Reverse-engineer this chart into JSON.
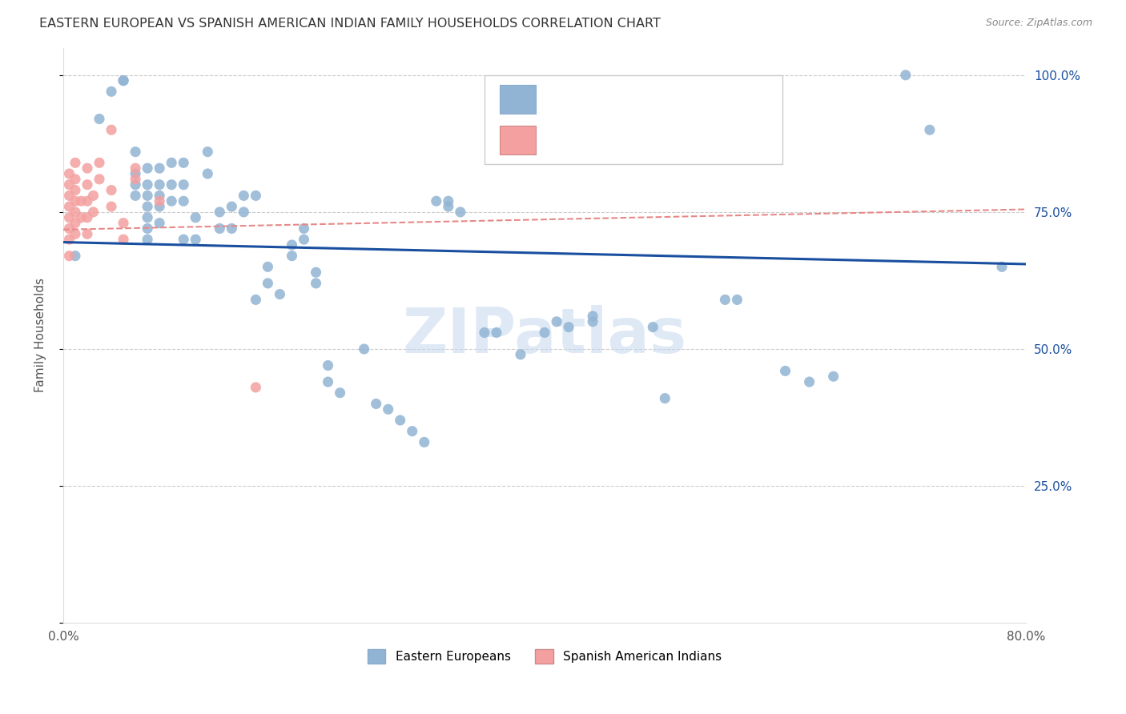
{
  "title": "EASTERN EUROPEAN VS SPANISH AMERICAN INDIAN FAMILY HOUSEHOLDS CORRELATION CHART",
  "source": "Source: ZipAtlas.com",
  "ylabel": "Family Households",
  "xlim": [
    0.0,
    0.8
  ],
  "ylim": [
    0.0,
    1.05
  ],
  "blue_color": "#92b4d4",
  "pink_color": "#f4a0a0",
  "blue_line_color": "#1a4fa0",
  "pink_line_color": "#e88888",
  "watermark": "ZIPatlas",
  "blue_scatter_x": [
    0.01,
    0.03,
    0.04,
    0.05,
    0.05,
    0.06,
    0.06,
    0.06,
    0.06,
    0.07,
    0.07,
    0.07,
    0.07,
    0.07,
    0.07,
    0.07,
    0.08,
    0.08,
    0.08,
    0.08,
    0.08,
    0.09,
    0.09,
    0.09,
    0.1,
    0.1,
    0.1,
    0.1,
    0.11,
    0.11,
    0.12,
    0.12,
    0.13,
    0.13,
    0.14,
    0.14,
    0.15,
    0.15,
    0.16,
    0.16,
    0.17,
    0.17,
    0.18,
    0.19,
    0.19,
    0.2,
    0.2,
    0.21,
    0.21,
    0.22,
    0.22,
    0.23,
    0.25,
    0.26,
    0.27,
    0.28,
    0.29,
    0.3,
    0.31,
    0.32,
    0.32,
    0.33,
    0.35,
    0.36,
    0.38,
    0.4,
    0.41,
    0.42,
    0.44,
    0.44,
    0.49,
    0.5,
    0.55,
    0.56,
    0.6,
    0.62,
    0.64,
    0.7,
    0.72,
    0.78
  ],
  "blue_scatter_y": [
    0.67,
    0.92,
    0.97,
    0.99,
    0.99,
    0.86,
    0.82,
    0.8,
    0.78,
    0.83,
    0.8,
    0.78,
    0.76,
    0.74,
    0.72,
    0.7,
    0.83,
    0.8,
    0.78,
    0.76,
    0.73,
    0.84,
    0.8,
    0.77,
    0.84,
    0.8,
    0.77,
    0.7,
    0.74,
    0.7,
    0.86,
    0.82,
    0.75,
    0.72,
    0.76,
    0.72,
    0.78,
    0.75,
    0.78,
    0.59,
    0.65,
    0.62,
    0.6,
    0.69,
    0.67,
    0.72,
    0.7,
    0.64,
    0.62,
    0.47,
    0.44,
    0.42,
    0.5,
    0.4,
    0.39,
    0.37,
    0.35,
    0.33,
    0.77,
    0.77,
    0.76,
    0.75,
    0.53,
    0.53,
    0.49,
    0.53,
    0.55,
    0.54,
    0.56,
    0.55,
    0.54,
    0.41,
    0.59,
    0.59,
    0.46,
    0.44,
    0.45,
    1.0,
    0.9,
    0.65
  ],
  "pink_scatter_x": [
    0.005,
    0.005,
    0.005,
    0.005,
    0.005,
    0.005,
    0.005,
    0.005,
    0.01,
    0.01,
    0.01,
    0.01,
    0.01,
    0.01,
    0.01,
    0.015,
    0.015,
    0.02,
    0.02,
    0.02,
    0.02,
    0.02,
    0.025,
    0.025,
    0.03,
    0.03,
    0.04,
    0.04,
    0.04,
    0.05,
    0.05,
    0.06,
    0.06,
    0.08,
    0.16
  ],
  "pink_scatter_y": [
    0.82,
    0.8,
    0.78,
    0.76,
    0.74,
    0.72,
    0.7,
    0.67,
    0.84,
    0.81,
    0.79,
    0.77,
    0.75,
    0.73,
    0.71,
    0.77,
    0.74,
    0.83,
    0.8,
    0.77,
    0.74,
    0.71,
    0.78,
    0.75,
    0.84,
    0.81,
    0.9,
    0.79,
    0.76,
    0.73,
    0.7,
    0.83,
    0.81,
    0.77,
    0.43
  ],
  "blue_trend_x0": 0.0,
  "blue_trend_y0": 0.695,
  "blue_trend_x1": 0.8,
  "blue_trend_y1": 0.655,
  "pink_trend_x0": 0.0,
  "pink_trend_y0": 0.718,
  "pink_trend_x1": 0.8,
  "pink_trend_y1": 0.755
}
